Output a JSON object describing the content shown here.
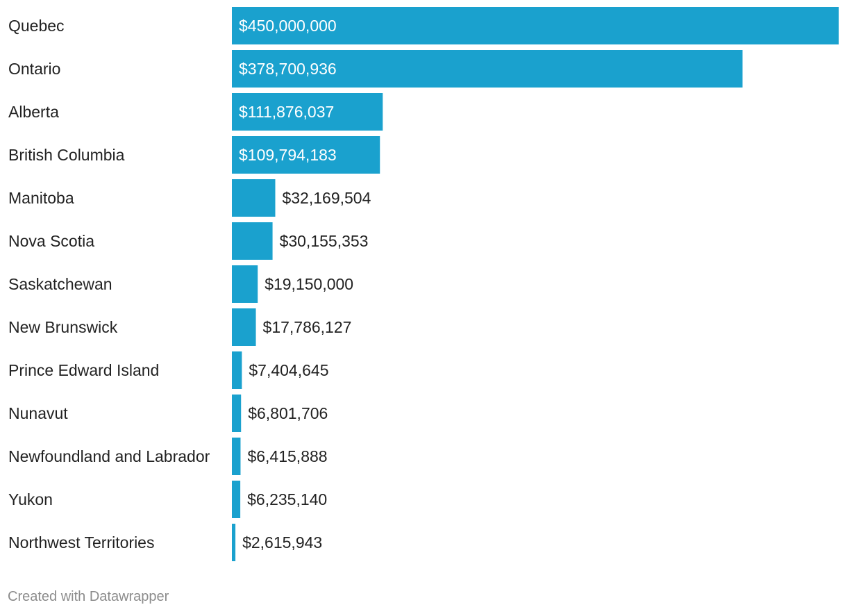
{
  "chart_data": {
    "type": "bar",
    "orientation": "horizontal",
    "categories": [
      "Quebec",
      "Ontario",
      "Alberta",
      "British Columbia",
      "Manitoba",
      "Nova Scotia",
      "Saskatchewan",
      "New Brunswick",
      "Prince Edward Island",
      "Nunavut",
      "Newfoundland and Labrador",
      "Yukon",
      "Northwest Territories"
    ],
    "values": [
      450000000,
      378700936,
      111876037,
      109794183,
      32169504,
      30155353,
      19150000,
      17786127,
      7404645,
      6801706,
      6415888,
      6235140,
      2615943
    ],
    "value_labels": [
      "$450,000,000",
      "$378,700,936",
      "$111,876,037",
      "$109,794,183",
      "$32,169,504",
      "$30,155,353",
      "$19,150,000",
      "$17,786,127",
      "$7,404,645",
      "$6,801,706",
      "$6,415,888",
      "$6,235,140",
      "$2,615,943"
    ],
    "xlim": [
      0,
      450000000
    ],
    "title": "",
    "xlabel": "",
    "ylabel": "",
    "bar_color": "#1aa1ce",
    "label_inside_color": "#ffffff",
    "label_outside_color": "#222222",
    "grid": false
  },
  "footer": {
    "credit": "Created with Datawrapper"
  }
}
